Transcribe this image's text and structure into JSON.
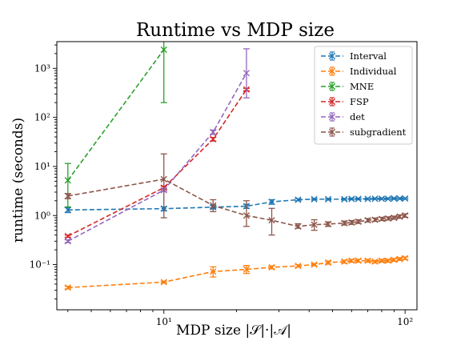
{
  "chart_data": {
    "type": "line",
    "title": "Runtime vs MDP size",
    "xlabel": "MDP size |𝒮|·|𝒜|",
    "ylabel": "runtime (seconds)",
    "x_scale": "log",
    "y_scale": "log",
    "xlim": [
      3.6,
      112
    ],
    "ylim": [
      0.012,
      3500
    ],
    "x_ticks": [
      {
        "value": 10,
        "label": "10¹"
      },
      {
        "value": 100,
        "label": "10²"
      }
    ],
    "y_ticks": [
      {
        "value": 0.1,
        "label": "10⁻¹"
      },
      {
        "value": 1,
        "label": "10⁰"
      },
      {
        "value": 10,
        "label": "10¹"
      },
      {
        "value": 100,
        "label": "10²"
      },
      {
        "value": 1000,
        "label": "10³"
      }
    ],
    "grid": false,
    "legend_position": "top-right",
    "series": [
      {
        "name": "Interval",
        "color": "#1f77b4",
        "points": [
          {
            "x": 4,
            "y": 1.3,
            "lo": 1.15,
            "hi": 1.45
          },
          {
            "x": 10,
            "y": 1.38,
            "lo": 1.25,
            "hi": 1.5
          },
          {
            "x": 16,
            "y": 1.48,
            "lo": 1.36,
            "hi": 1.6
          },
          {
            "x": 22,
            "y": 1.55,
            "lo": 1.4,
            "hi": 1.7
          },
          {
            "x": 28,
            "y": 1.9,
            "lo": 1.7,
            "hi": 2.1
          },
          {
            "x": 36,
            "y": 2.1,
            "lo": 2.0,
            "hi": 2.2
          },
          {
            "x": 42,
            "y": 2.15,
            "lo": 2.07,
            "hi": 2.23
          },
          {
            "x": 48,
            "y": 2.15,
            "lo": 2.07,
            "hi": 2.23
          },
          {
            "x": 56,
            "y": 2.15,
            "lo": 2.07,
            "hi": 2.23
          },
          {
            "x": 60,
            "y": 2.18,
            "lo": 2.1,
            "hi": 2.26
          },
          {
            "x": 64,
            "y": 2.18,
            "lo": 2.1,
            "hi": 2.26
          },
          {
            "x": 70,
            "y": 2.18,
            "lo": 2.1,
            "hi": 2.26
          },
          {
            "x": 75,
            "y": 2.2,
            "lo": 2.12,
            "hi": 2.28
          },
          {
            "x": 80,
            "y": 2.2,
            "lo": 2.12,
            "hi": 2.28
          },
          {
            "x": 85,
            "y": 2.2,
            "lo": 2.12,
            "hi": 2.28
          },
          {
            "x": 90,
            "y": 2.22,
            "lo": 2.14,
            "hi": 2.3
          },
          {
            "x": 95,
            "y": 2.22,
            "lo": 2.14,
            "hi": 2.3
          },
          {
            "x": 100,
            "y": 2.22,
            "lo": 2.14,
            "hi": 2.3
          }
        ]
      },
      {
        "name": "Individual",
        "color": "#ff7f0e",
        "points": [
          {
            "x": 4,
            "y": 0.034,
            "lo": 0.032,
            "hi": 0.036
          },
          {
            "x": 10,
            "y": 0.044,
            "lo": 0.042,
            "hi": 0.046
          },
          {
            "x": 16,
            "y": 0.072,
            "lo": 0.056,
            "hi": 0.09
          },
          {
            "x": 22,
            "y": 0.08,
            "lo": 0.066,
            "hi": 0.096
          },
          {
            "x": 28,
            "y": 0.088,
            "lo": 0.082,
            "hi": 0.094
          },
          {
            "x": 36,
            "y": 0.094,
            "lo": 0.089,
            "hi": 0.099
          },
          {
            "x": 42,
            "y": 0.1,
            "lo": 0.095,
            "hi": 0.105
          },
          {
            "x": 48,
            "y": 0.11,
            "lo": 0.102,
            "hi": 0.118
          },
          {
            "x": 56,
            "y": 0.115,
            "lo": 0.107,
            "hi": 0.123
          },
          {
            "x": 60,
            "y": 0.12,
            "lo": 0.112,
            "hi": 0.128
          },
          {
            "x": 64,
            "y": 0.12,
            "lo": 0.112,
            "hi": 0.128
          },
          {
            "x": 70,
            "y": 0.12,
            "lo": 0.112,
            "hi": 0.128
          },
          {
            "x": 75,
            "y": 0.115,
            "lo": 0.108,
            "hi": 0.122
          },
          {
            "x": 80,
            "y": 0.12,
            "lo": 0.112,
            "hi": 0.128
          },
          {
            "x": 85,
            "y": 0.12,
            "lo": 0.112,
            "hi": 0.128
          },
          {
            "x": 90,
            "y": 0.125,
            "lo": 0.117,
            "hi": 0.133
          },
          {
            "x": 95,
            "y": 0.13,
            "lo": 0.122,
            "hi": 0.138
          },
          {
            "x": 100,
            "y": 0.135,
            "lo": 0.127,
            "hi": 0.143
          }
        ]
      },
      {
        "name": "MNE",
        "color": "#2ca02c",
        "points": [
          {
            "x": 4,
            "y": 5.2,
            "lo": 1.5,
            "hi": 11.5
          },
          {
            "x": 10,
            "y": 2400,
            "lo": 200,
            "hi": 4500
          }
        ]
      },
      {
        "name": "FSP",
        "color": "#d62728",
        "points": [
          {
            "x": 4,
            "y": 0.38,
            "lo": 0.36,
            "hi": 0.4
          },
          {
            "x": 10,
            "y": 3.7,
            "lo": 3.4,
            "hi": 4.0
          },
          {
            "x": 16,
            "y": 36,
            "lo": 33,
            "hi": 39
          },
          {
            "x": 22,
            "y": 370,
            "lo": 350,
            "hi": 390
          }
        ]
      },
      {
        "name": "det",
        "color": "#9467bd",
        "points": [
          {
            "x": 4,
            "y": 0.3,
            "lo": 0.28,
            "hi": 0.32
          },
          {
            "x": 10,
            "y": 3.3,
            "lo": 3.1,
            "hi": 3.5
          },
          {
            "x": 16,
            "y": 50,
            "lo": 45,
            "hi": 55
          },
          {
            "x": 22,
            "y": 800,
            "lo": 250,
            "hi": 2500
          }
        ]
      },
      {
        "name": "subgradient",
        "color": "#8c564b",
        "points": [
          {
            "x": 4,
            "y": 2.5,
            "lo": 2.2,
            "hi": 2.8
          },
          {
            "x": 10,
            "y": 5.5,
            "lo": 0.9,
            "hi": 18
          },
          {
            "x": 16,
            "y": 1.6,
            "lo": 1.2,
            "hi": 2.1
          },
          {
            "x": 22,
            "y": 1.0,
            "lo": 0.6,
            "hi": 2.0
          },
          {
            "x": 28,
            "y": 0.8,
            "lo": 0.4,
            "hi": 1.4
          },
          {
            "x": 36,
            "y": 0.6,
            "lo": 0.55,
            "hi": 0.68
          },
          {
            "x": 42,
            "y": 0.65,
            "lo": 0.5,
            "hi": 0.82
          },
          {
            "x": 48,
            "y": 0.67,
            "lo": 0.6,
            "hi": 0.74
          },
          {
            "x": 56,
            "y": 0.7,
            "lo": 0.64,
            "hi": 0.77
          },
          {
            "x": 60,
            "y": 0.72,
            "lo": 0.66,
            "hi": 0.79
          },
          {
            "x": 64,
            "y": 0.75,
            "lo": 0.69,
            "hi": 0.82
          },
          {
            "x": 70,
            "y": 0.8,
            "lo": 0.74,
            "hi": 0.87
          },
          {
            "x": 75,
            "y": 0.82,
            "lo": 0.76,
            "hi": 0.89
          },
          {
            "x": 80,
            "y": 0.85,
            "lo": 0.79,
            "hi": 0.92
          },
          {
            "x": 85,
            "y": 0.87,
            "lo": 0.81,
            "hi": 0.94
          },
          {
            "x": 90,
            "y": 0.9,
            "lo": 0.84,
            "hi": 0.97
          },
          {
            "x": 95,
            "y": 0.95,
            "lo": 0.88,
            "hi": 1.03
          },
          {
            "x": 100,
            "y": 1.0,
            "lo": 0.92,
            "hi": 1.08
          }
        ]
      }
    ]
  }
}
